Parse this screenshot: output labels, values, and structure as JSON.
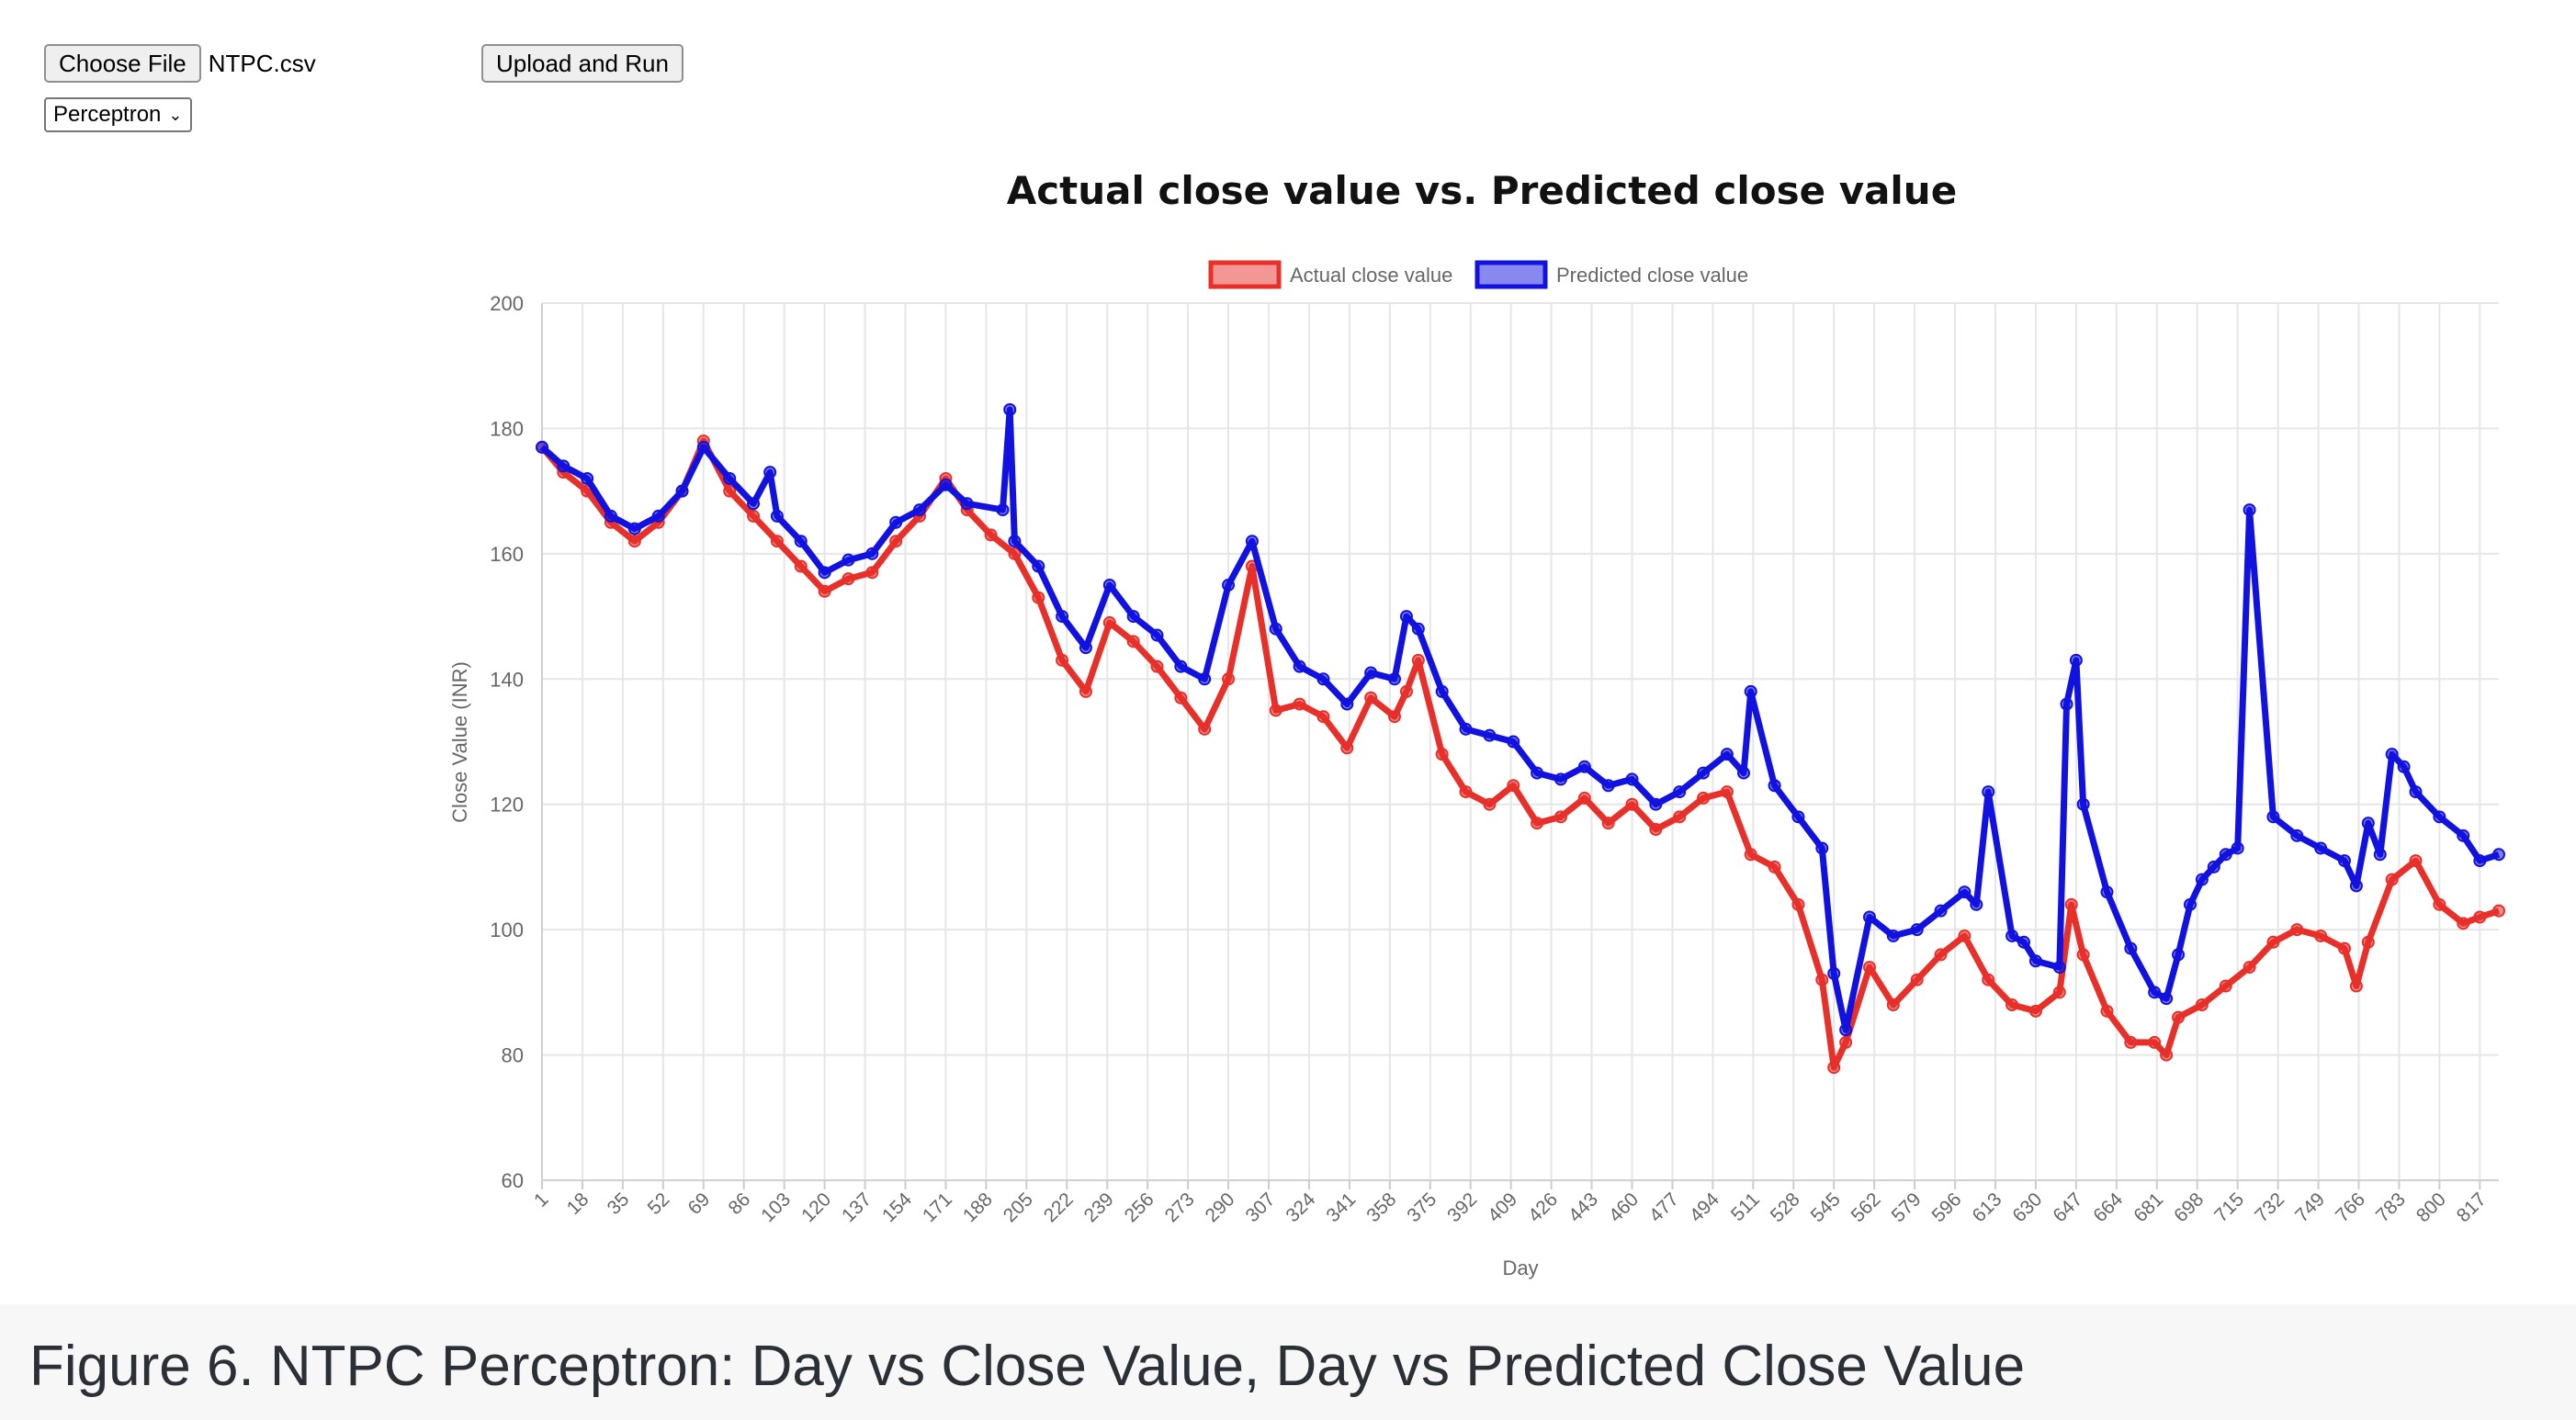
{
  "controls": {
    "choose_file_label": "Choose File",
    "file_name": "NTPC.csv",
    "upload_label": "Upload and Run",
    "model_selected": "Perceptron"
  },
  "caption": "Figure 6. NTPC Perceptron: Day vs Close Value, Day vs Predicted Close Value",
  "colors": {
    "actual": "#e8302a",
    "predicted": "#1212e0",
    "grid": "#e6e6e6"
  },
  "chart_data": {
    "type": "line",
    "title": "Actual close value vs. Predicted close value",
    "xlabel": "Day",
    "ylabel": "Close Value (INR)",
    "ylim": [
      60,
      200
    ],
    "yticks": [
      60,
      80,
      100,
      120,
      140,
      160,
      180,
      200
    ],
    "xlim": [
      1,
      825
    ],
    "xticks": [
      1,
      18,
      35,
      52,
      69,
      86,
      103,
      120,
      137,
      154,
      171,
      188,
      205,
      222,
      239,
      256,
      273,
      290,
      307,
      324,
      341,
      358,
      375,
      392,
      409,
      426,
      443,
      460,
      477,
      494,
      511,
      528,
      545,
      562,
      579,
      596,
      613,
      630,
      647,
      664,
      681,
      698,
      715,
      732,
      749,
      766,
      783,
      800,
      817
    ],
    "legend_position": "top-center",
    "grid": true,
    "series": [
      {
        "name": "Actual close value",
        "color": "#e8302a",
        "x": [
          1,
          10,
          20,
          30,
          40,
          50,
          60,
          69,
          80,
          90,
          100,
          110,
          120,
          130,
          140,
          150,
          160,
          171,
          180,
          190,
          200,
          210,
          220,
          230,
          240,
          250,
          260,
          270,
          280,
          290,
          300,
          310,
          320,
          330,
          340,
          350,
          360,
          365,
          370,
          380,
          390,
          400,
          410,
          420,
          430,
          440,
          450,
          460,
          470,
          480,
          490,
          500,
          510,
          520,
          530,
          540,
          545,
          550,
          560,
          570,
          580,
          590,
          600,
          610,
          620,
          630,
          640,
          645,
          650,
          660,
          670,
          680,
          685,
          690,
          700,
          710,
          720,
          730,
          740,
          750,
          760,
          765,
          770,
          780,
          790,
          800,
          810,
          817,
          825
        ],
        "values": [
          177,
          173,
          170,
          165,
          162,
          165,
          170,
          178,
          170,
          166,
          162,
          158,
          154,
          156,
          157,
          162,
          166,
          172,
          167,
          163,
          160,
          153,
          143,
          138,
          149,
          146,
          142,
          137,
          132,
          140,
          158,
          135,
          136,
          134,
          129,
          137,
          134,
          138,
          143,
          128,
          122,
          120,
          123,
          117,
          118,
          121,
          117,
          120,
          116,
          118,
          121,
          122,
          112,
          110,
          104,
          92,
          78,
          82,
          94,
          88,
          92,
          96,
          99,
          92,
          88,
          87,
          90,
          104,
          96,
          87,
          82,
          82,
          80,
          86,
          88,
          91,
          94,
          98,
          100,
          99,
          97,
          91,
          98,
          108,
          111,
          104,
          101,
          102,
          103
        ]
      },
      {
        "name": "Predicted close value",
        "color": "#1212e0",
        "x": [
          1,
          10,
          20,
          30,
          40,
          50,
          60,
          69,
          80,
          90,
          97,
          100,
          110,
          120,
          130,
          140,
          150,
          160,
          171,
          180,
          195,
          198,
          200,
          210,
          220,
          230,
          240,
          250,
          260,
          270,
          280,
          290,
          300,
          310,
          320,
          330,
          340,
          350,
          360,
          365,
          370,
          380,
          390,
          400,
          410,
          420,
          430,
          440,
          450,
          460,
          470,
          480,
          490,
          500,
          507,
          510,
          520,
          530,
          540,
          545,
          550,
          560,
          570,
          580,
          590,
          600,
          605,
          610,
          620,
          625,
          630,
          640,
          643,
          647,
          650,
          660,
          670,
          680,
          685,
          690,
          695,
          700,
          705,
          710,
          715,
          720,
          730,
          740,
          750,
          760,
          765,
          770,
          775,
          780,
          785,
          790,
          800,
          810,
          817,
          825
        ],
        "values": [
          177,
          174,
          172,
          166,
          164,
          166,
          170,
          177,
          172,
          168,
          173,
          166,
          162,
          157,
          159,
          160,
          165,
          167,
          171,
          168,
          167,
          183,
          162,
          158,
          150,
          145,
          155,
          150,
          147,
          142,
          140,
          155,
          162,
          148,
          142,
          140,
          136,
          141,
          140,
          150,
          148,
          138,
          132,
          131,
          130,
          125,
          124,
          126,
          123,
          124,
          120,
          122,
          125,
          128,
          125,
          138,
          123,
          118,
          113,
          93,
          84,
          102,
          99,
          100,
          103,
          106,
          104,
          122,
          99,
          98,
          95,
          94,
          136,
          143,
          120,
          106,
          97,
          90,
          89,
          96,
          104,
          108,
          110,
          112,
          113,
          167,
          118,
          115,
          113,
          111,
          107,
          117,
          112,
          128,
          126,
          122,
          118,
          115,
          111,
          112
        ]
      }
    ]
  }
}
